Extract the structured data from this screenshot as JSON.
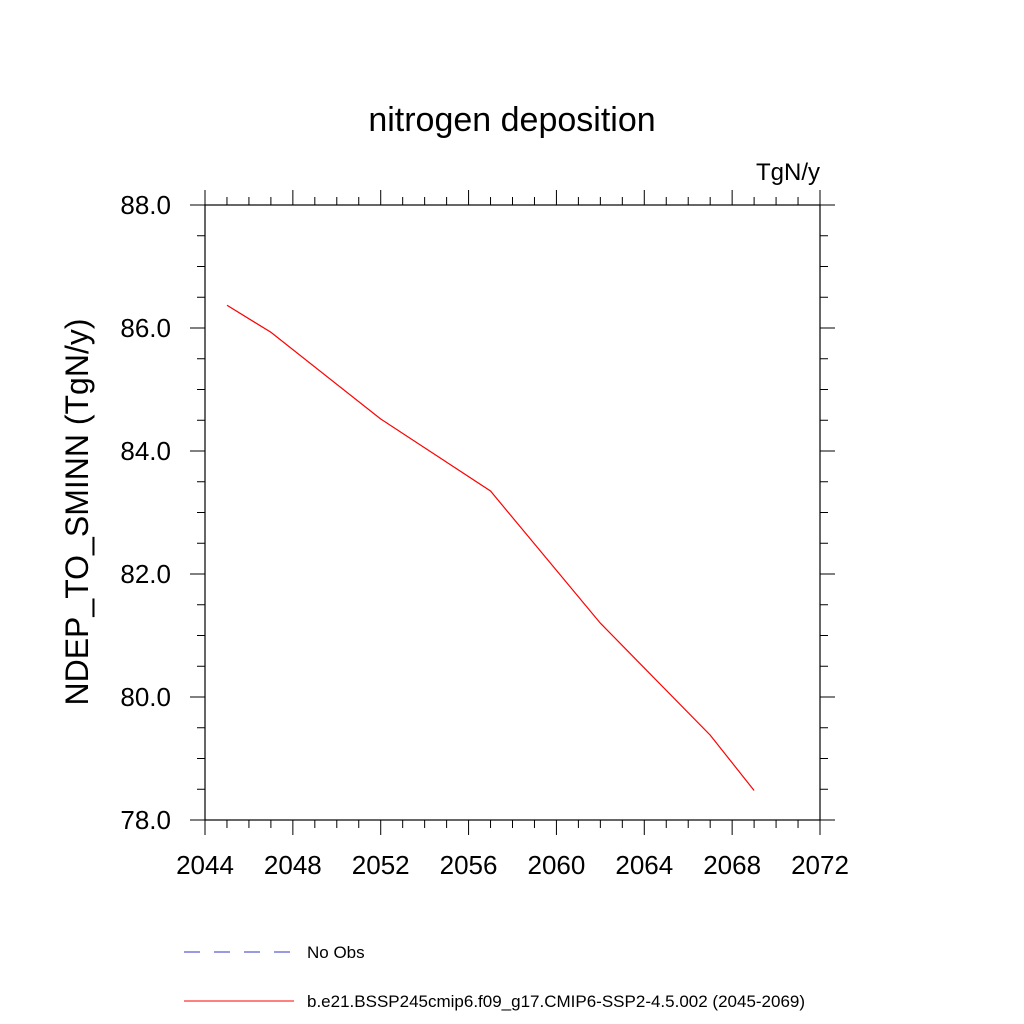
{
  "chart_data": {
    "type": "line",
    "title": "nitrogen deposition",
    "units_label": "TgN/y",
    "ylabel": "NDEP_TO_SMINN  (TgN/y)",
    "xlabel": "",
    "xlim": [
      2044,
      2072
    ],
    "ylim": [
      78.0,
      88.0
    ],
    "x_ticks": [
      "2044",
      "2048",
      "2052",
      "2056",
      "2060",
      "2064",
      "2068",
      "2072"
    ],
    "y_ticks": [
      "78.0",
      "80.0",
      "82.0",
      "84.0",
      "86.0",
      "88.0"
    ],
    "grid": false,
    "series": [
      {
        "name": "b.e21.BSSP245cmip6.f09_g17.CMIP6-SSP2-4.5.002 (2045-2069)",
        "color": "#ff0000",
        "style": "solid",
        "x": [
          2045,
          2047,
          2052,
          2057,
          2062,
          2067,
          2069
        ],
        "y": [
          86.37,
          85.93,
          84.52,
          83.35,
          81.2,
          79.38,
          78.48
        ]
      }
    ],
    "legend": {
      "placement": "bottom",
      "entries": [
        {
          "label": "No Obs",
          "color": "#3333cc",
          "style": "dashed"
        },
        {
          "label": "b.e21.BSSP245cmip6.f09_g17.CMIP6-SSP2-4.5.002 (2045-2069)",
          "color": "#ff0000",
          "style": "solid"
        }
      ]
    }
  }
}
